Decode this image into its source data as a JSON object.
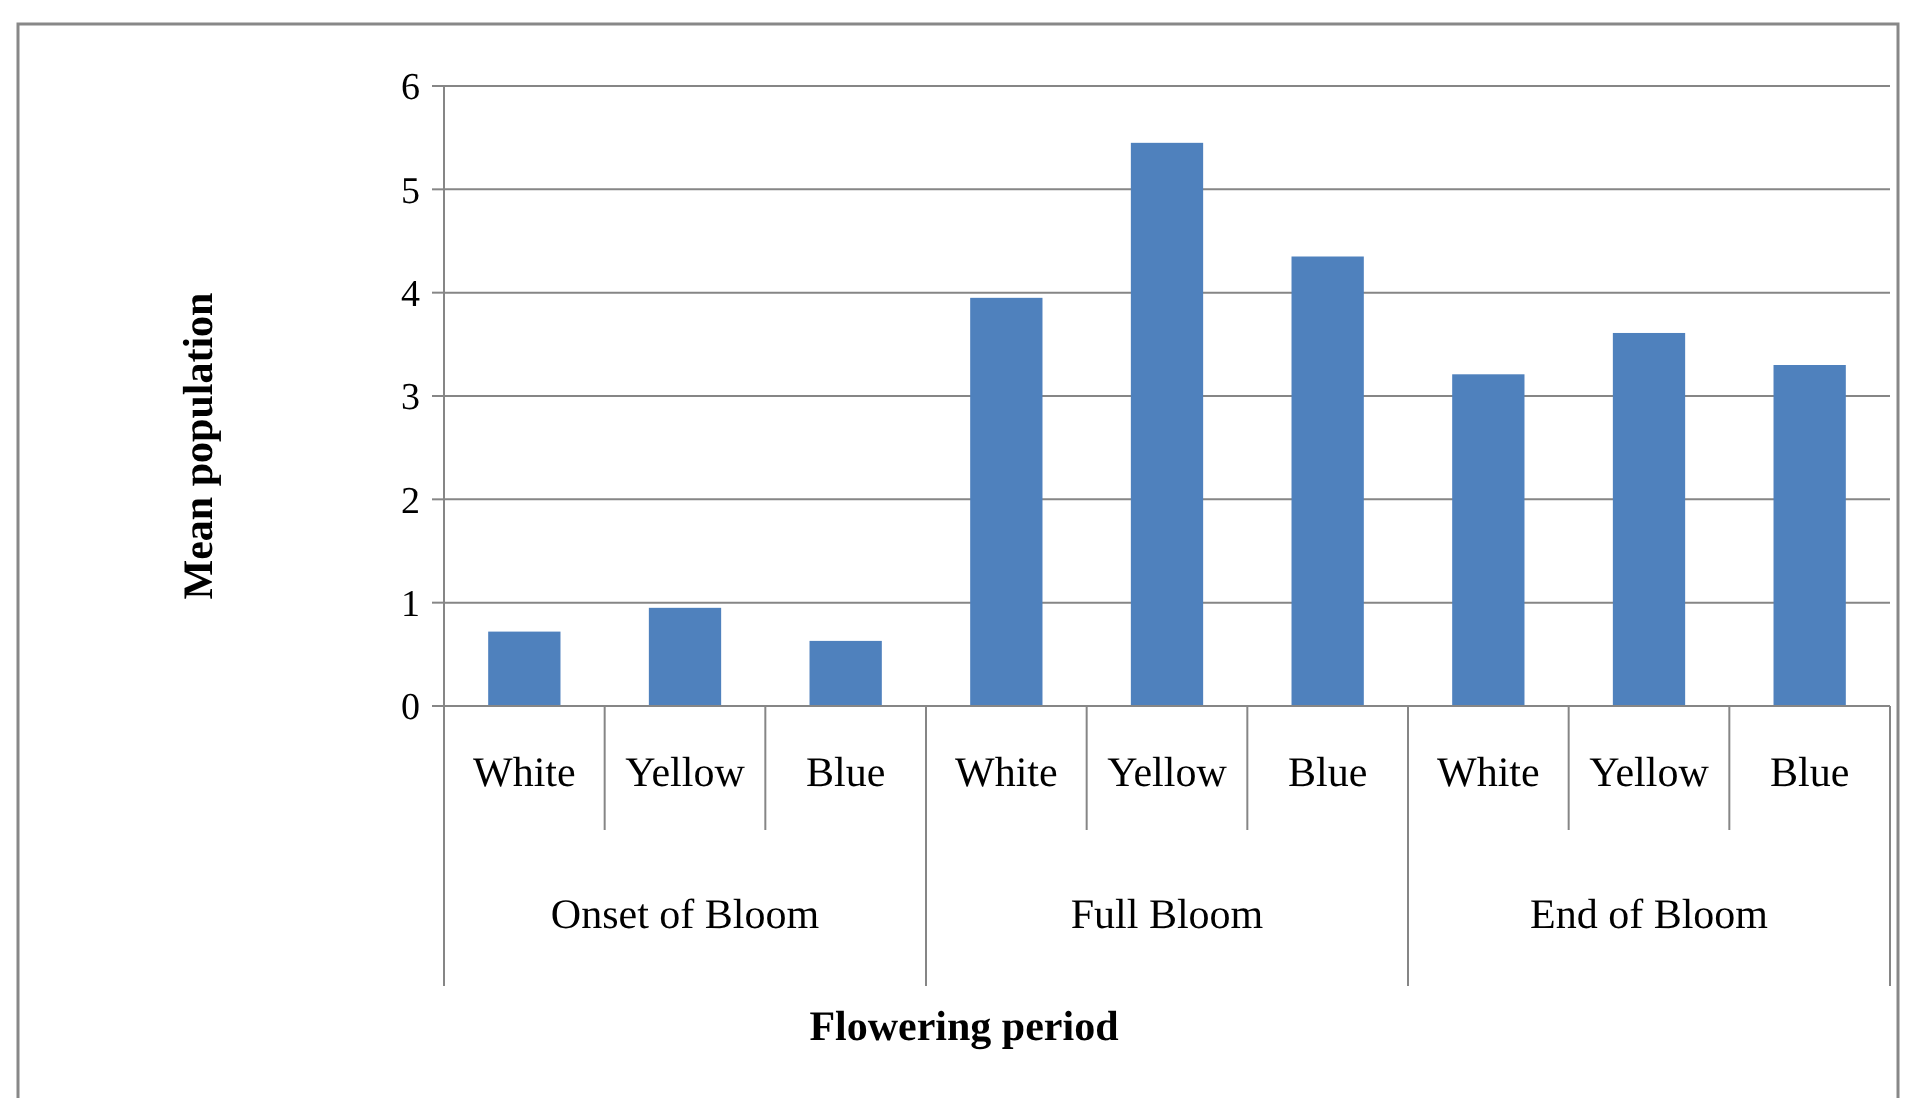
{
  "chart_data": {
    "type": "bar",
    "xlabel": "Flowering period",
    "ylabel": "Mean population",
    "categories": [
      "White",
      "Yellow",
      "Blue",
      "White",
      "Yellow",
      "Blue",
      "White",
      "Yellow",
      "Blue"
    ],
    "values": [
      0.72,
      0.95,
      0.63,
      3.95,
      5.45,
      4.35,
      3.21,
      3.61,
      3.3
    ],
    "color": "#4f81bd",
    "ylim": [
      0,
      6
    ],
    "yticks": [
      0,
      1,
      2,
      3,
      4,
      5,
      6
    ],
    "grid": "y",
    "annotations": [
      "Onset of Bloom",
      "Full Bloom",
      "End of Bloom"
    ]
  }
}
